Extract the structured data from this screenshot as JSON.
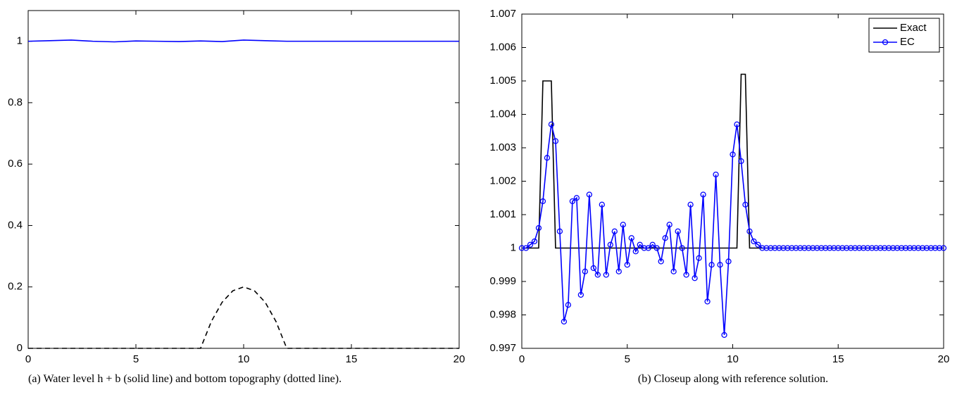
{
  "chart_data": [
    {
      "type": "line",
      "caption": "(a) Water level h + b (solid line) and bottom topography (dotted line).",
      "xlim": [
        0,
        20
      ],
      "xticks": [
        0,
        5,
        10,
        15,
        20
      ],
      "ylim": [
        0,
        1.1
      ],
      "yticks": [
        0,
        0.2,
        0.4,
        0.6,
        0.8,
        1
      ],
      "series": [
        {
          "color": "#0000ff",
          "line_style": "solid",
          "x": [
            0,
            1,
            2,
            3,
            4,
            5,
            6,
            7,
            8,
            9,
            10,
            11,
            12,
            13,
            14,
            15,
            16,
            17,
            18,
            19,
            20
          ],
          "values": [
            1,
            1.002,
            1.004,
            1,
            0.998,
            1.001,
            1,
            0.999,
            1.001,
            0.999,
            1.004,
            1.002,
            1,
            1,
            1,
            1,
            1,
            1,
            1,
            1,
            1
          ]
        },
        {
          "color": "#000000",
          "line_style": "dashed",
          "x": [
            0,
            8,
            8.5,
            9,
            9.5,
            10,
            10.5,
            11,
            11.5,
            12,
            20
          ],
          "values": [
            0,
            0,
            0.0875,
            0.15,
            0.1875,
            0.2,
            0.1875,
            0.15,
            0.0875,
            0,
            0
          ]
        }
      ]
    },
    {
      "type": "line",
      "caption": "(b) Closeup along with reference solution.",
      "xlim": [
        0,
        20
      ],
      "xticks": [
        0,
        5,
        10,
        15,
        20
      ],
      "ylim": [
        0.997,
        1.007
      ],
      "yticks": [
        0.997,
        0.998,
        0.999,
        1,
        1.001,
        1.002,
        1.003,
        1.004,
        1.005,
        1.006,
        1.007
      ],
      "legend": "northeast",
      "series": [
        {
          "name": "Exact",
          "color": "#000000",
          "line_style": "solid",
          "x": [
            0,
            0.8,
            1.0,
            1.4,
            1.6,
            10.2,
            10.4,
            10.6,
            10.8,
            20
          ],
          "values": [
            1,
            1,
            1.005,
            1.005,
            1,
            1,
            1.0052,
            1.0052,
            1,
            1
          ]
        },
        {
          "name": "EC",
          "color": "#0000ff",
          "line_style": "solid",
          "marker": "o",
          "x": [
            0,
            0.2,
            0.4,
            0.6,
            0.8,
            1,
            1.2,
            1.4,
            1.6,
            1.8,
            2,
            2.2,
            2.4,
            2.6,
            2.8,
            3,
            3.2,
            3.4,
            3.6,
            3.8,
            4,
            4.2,
            4.4,
            4.6,
            4.8,
            5,
            5.2,
            5.4,
            5.6,
            5.8,
            6,
            6.2,
            6.4,
            6.6,
            6.8,
            7,
            7.2,
            7.4,
            7.6,
            7.8,
            8,
            8.2,
            8.4,
            8.6,
            8.8,
            9,
            9.2,
            9.4,
            9.6,
            9.8,
            10,
            10.2,
            10.4,
            10.6,
            10.8,
            11,
            11.2,
            11.4,
            11.6,
            11.8,
            12,
            12.2,
            12.4,
            12.6,
            12.8,
            13,
            13.2,
            13.4,
            13.6,
            13.8,
            14,
            14.2,
            14.4,
            14.6,
            14.8,
            15,
            15.2,
            15.4,
            15.6,
            15.8,
            16,
            16.2,
            16.4,
            16.6,
            16.8,
            17,
            17.2,
            17.4,
            17.6,
            17.8,
            18,
            18.2,
            18.4,
            18.6,
            18.8,
            19,
            19.2,
            19.4,
            19.6,
            19.8,
            20
          ],
          "values": [
            1,
            1,
            1.0001,
            1.0002,
            1.0006,
            1.0014,
            1.0027,
            1.0037,
            1.0032,
            1.0005,
            0.9978,
            0.9983,
            1.0014,
            1.0015,
            0.9986,
            0.9993,
            1.0016,
            0.9994,
            0.9992,
            1.0013,
            0.9992,
            1.0001,
            1.0005,
            0.9993,
            1.0007,
            0.9995,
            1.0003,
            0.9999,
            1.0001,
            1,
            1,
            1.0001,
            1,
            0.9996,
            1.0003,
            1.0007,
            0.9993,
            1.0005,
            1,
            0.9992,
            1.0013,
            0.9991,
            0.9997,
            1.0016,
            0.9984,
            0.9995,
            1.0022,
            0.9995,
            0.9974,
            0.9996,
            1.0028,
            1.0037,
            1.0026,
            1.0013,
            1.0005,
            1.0002,
            1.0001,
            1,
            1,
            1,
            1,
            1,
            1,
            1,
            1,
            1,
            1,
            1,
            1,
            1,
            1,
            1,
            1,
            1,
            1,
            1,
            1,
            1,
            1,
            1,
            1,
            1,
            1,
            1,
            1,
            1,
            1,
            1,
            1,
            1,
            1,
            1,
            1,
            1,
            1,
            1,
            1,
            1,
            1,
            1,
            1
          ]
        }
      ]
    }
  ]
}
